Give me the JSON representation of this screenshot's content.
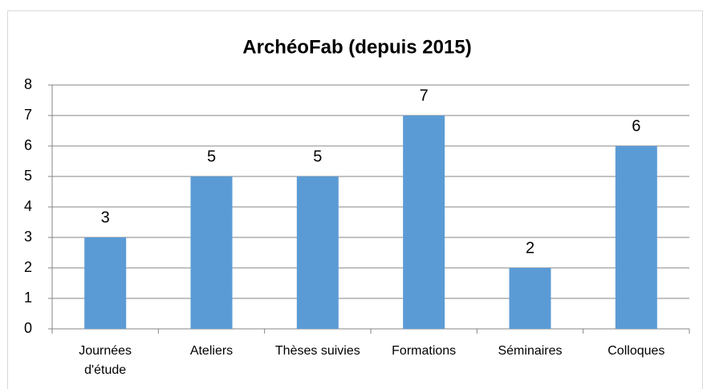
{
  "chart_data": {
    "type": "bar",
    "title": "ArchéoFab (depuis 2015)",
    "categories": [
      "Journées d'étude",
      "Ateliers",
      "Thèses suivies",
      "Formations",
      "Séminaires",
      "Colloques"
    ],
    "values": [
      3,
      5,
      5,
      7,
      2,
      6
    ],
    "color": "#5b9bd5",
    "ylim": [
      0,
      8
    ],
    "yticks": [
      0,
      1,
      2,
      3,
      4,
      5,
      6,
      7,
      8
    ],
    "grid": true
  }
}
